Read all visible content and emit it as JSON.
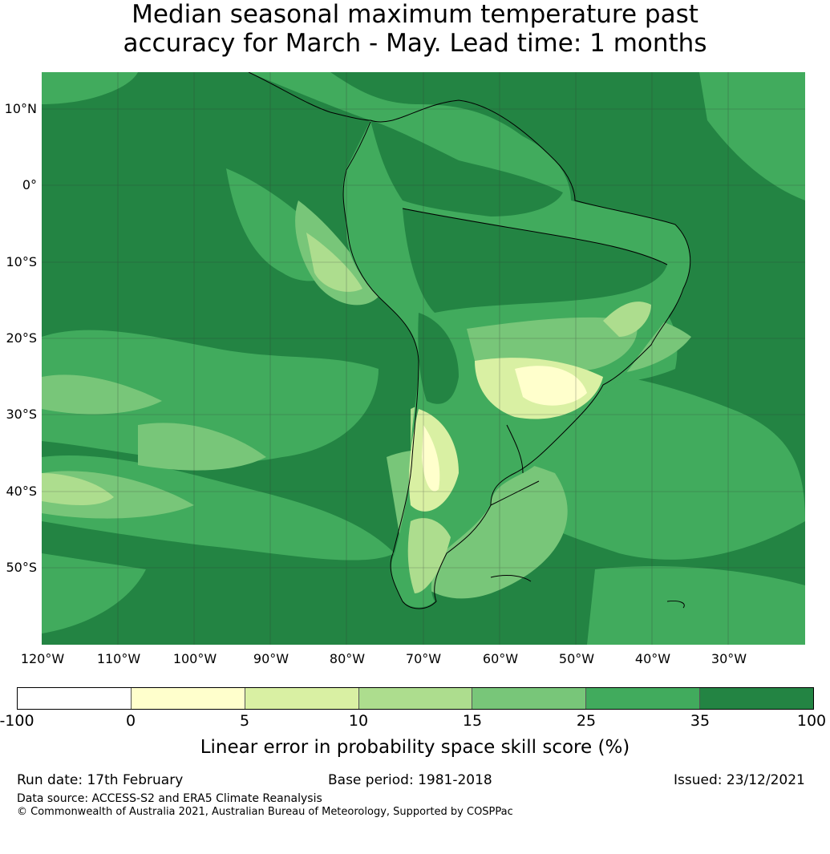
{
  "title_line1": "Median seasonal maximum temperature past",
  "title_line2": "accuracy for March - May. Lead time: 1 months",
  "map": {
    "region": "South America",
    "background_color": "#238443",
    "lat_labels": [
      "10°N",
      "0°",
      "10°S",
      "20°S",
      "30°S",
      "40°S",
      "50°S"
    ],
    "lon_labels": [
      "120°W",
      "110°W",
      "100°W",
      "90°W",
      "80°W",
      "70°W",
      "60°W",
      "50°W",
      "40°W",
      "30°W"
    ]
  },
  "colorbar": {
    "ticks": [
      "-100",
      "0",
      "5",
      "10",
      "15",
      "25",
      "35",
      "100"
    ],
    "colors": [
      "#ffffff",
      "#ffffcc",
      "#d9f0a3",
      "#addd8e",
      "#78c679",
      "#41ab5d",
      "#238443"
    ],
    "label": "Linear error in probability space skill score (%)"
  },
  "footer": {
    "run_date": "Run date: 17th February",
    "base_period": "Base period: 1981-2018",
    "issued": "Issued: 23/12/2021",
    "data_source": "Data source: ACCESS-S2 and ERA5 Climate Reanalysis",
    "copyright": "© Commonwealth of Australia 2021, Australian Bureau of Meteorology, Supported by COSPPac"
  }
}
